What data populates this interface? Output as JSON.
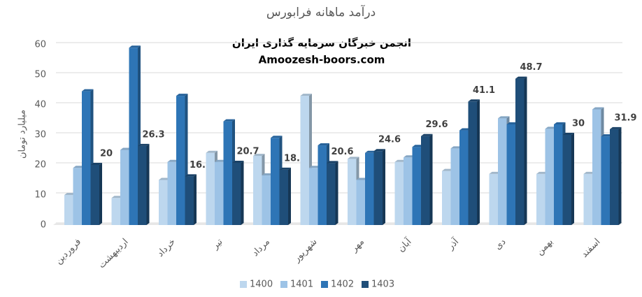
{
  "chart_data": {
    "type": "bar3d",
    "title": "درآمد ماهانه فرابورس",
    "annotations": [
      "انجمن خبرگان سرمایه گذاری ایران",
      "Amoozesh-boors.com"
    ],
    "ylabel": "میلیارد تومان",
    "categories": [
      "فروردین",
      "اردیبهشت",
      "خرداد",
      "تیر",
      "مرداد",
      "شهریور",
      "مهر",
      "آبان",
      "آذر",
      "دی",
      "بهمن",
      "اسفند"
    ],
    "series": [
      {
        "name": "1400",
        "color": "#bdd7ee",
        "values": [
          10,
          9,
          15,
          24,
          23,
          43,
          22,
          21,
          18,
          17,
          17,
          17
        ]
      },
      {
        "name": "1401",
        "color": "#9dc3e6",
        "values": [
          19,
          25,
          21,
          21,
          16.5,
          19,
          15,
          22.5,
          25.5,
          35.5,
          32,
          38.5
        ]
      },
      {
        "name": "1402",
        "color": "#2e75b6",
        "values": [
          44.5,
          59,
          43,
          34.5,
          29,
          26.5,
          24,
          26,
          31.5,
          33.5,
          33.5,
          29.5
        ]
      },
      {
        "name": "1403",
        "color": "#1f4e79",
        "values": [
          20,
          26.3,
          16.2,
          20.7,
          18.4,
          20.6,
          24.6,
          29.6,
          41.1,
          48.7,
          30,
          31.9
        ],
        "show_labels": true
      }
    ],
    "ylim": [
      0,
      60
    ],
    "yticks": [
      0,
      10,
      20,
      30,
      40,
      50,
      60
    ],
    "grid": true,
    "legend": "bottom"
  }
}
